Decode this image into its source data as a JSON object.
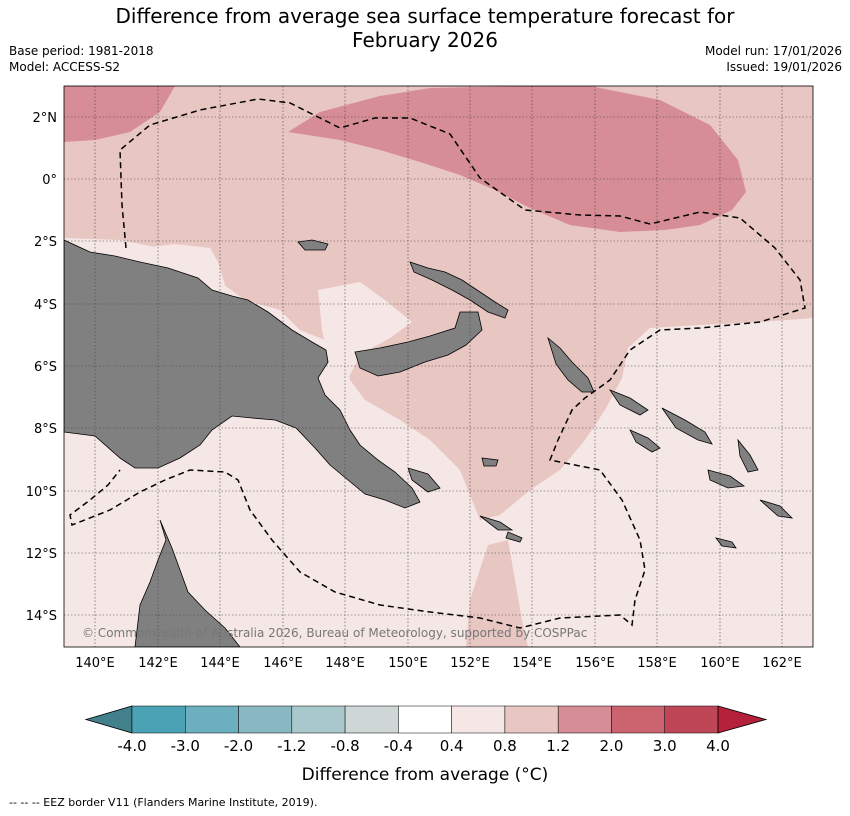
{
  "header": {
    "title_line1": "Difference from average sea surface temperature forecast for",
    "title_line2": "February 2026",
    "base_period": "Base period: 1981-2018",
    "model": "Model: ACCESS-S2",
    "model_run": "Model run: 17/01/2026",
    "issued": "Issued: 19/01/2026"
  },
  "map": {
    "lat_labels": [
      "2°N",
      "0°",
      "2°S",
      "4°S",
      "6°S",
      "8°S",
      "10°S",
      "12°S",
      "14°S"
    ],
    "lon_labels": [
      "140°E",
      "142°E",
      "144°E",
      "146°E",
      "148°E",
      "150°E",
      "152°E",
      "154°E",
      "156°E",
      "158°E",
      "160°E",
      "162°E"
    ],
    "copyright": "© Commonwealth of Australia 2026, Bureau of Meteorology, supported by COSPPac",
    "land_color": "#808080",
    "ocean_base_color": "#f5e7e5"
  },
  "colorbar": {
    "title": "Difference from average (°C)",
    "tick_labels": [
      "-4.0",
      "-3.0",
      "-2.0",
      "-1.2",
      "-0.8",
      "-0.4",
      "0.4",
      "0.8",
      "1.2",
      "2.0",
      "3.0",
      "4.0"
    ],
    "colors": [
      "#42818c",
      "#4aa2b4",
      "#6cb0c0",
      "#89b7c2",
      "#a8c8cc",
      "#cfd6d6",
      "#ffffff",
      "#f5e7e5",
      "#e8c6c2",
      "#d68d95",
      "#cc6470",
      "#bf4656",
      "#b5203b"
    ]
  },
  "legend": {
    "eez_line": "--  --  -- EEZ border V11 (Flanders Marine Institute, 2019)."
  }
}
